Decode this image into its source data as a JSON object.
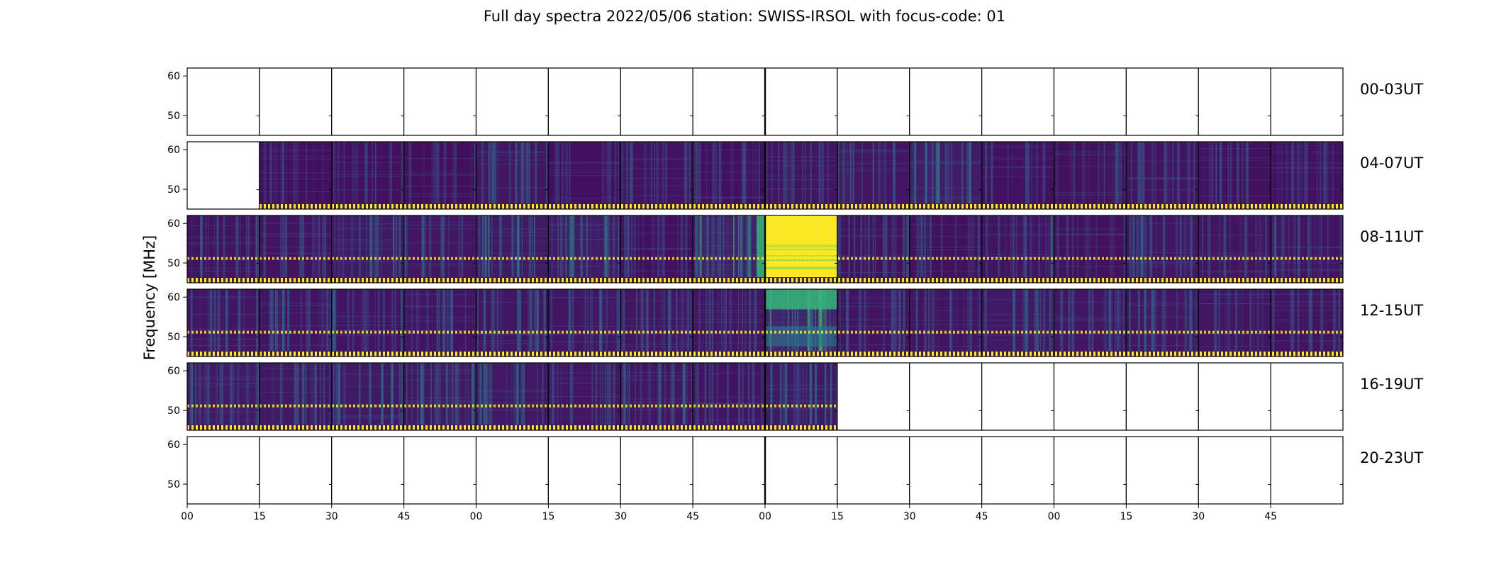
{
  "chart_data": {
    "type": "heatmap",
    "title": "Full day spectra 2022/05/06 station: SWISS-IRSOL with focus-code: 01",
    "ylabel": "Frequency [MHz]",
    "ylim": [
      45,
      62
    ],
    "yticks": [
      "60",
      "50"
    ],
    "ytick_values": [
      60,
      50
    ],
    "xticks": [
      "00",
      "15",
      "30",
      "45",
      "00",
      "15",
      "30",
      "45",
      "00",
      "15",
      "30",
      "45",
      "00",
      "15",
      "30",
      "45"
    ],
    "panels_per_row": 16,
    "minutes_per_panel": 15,
    "colormap": [
      "#440154",
      "#3b528b",
      "#21918c",
      "#5ec962",
      "#fde725"
    ],
    "rows": [
      {
        "label": "00-03UT",
        "panels": [
          {
            "data": false
          },
          {
            "data": false
          },
          {
            "data": false
          },
          {
            "data": false
          },
          {
            "data": false
          },
          {
            "data": false
          },
          {
            "data": false
          },
          {
            "data": false
          },
          {
            "data": false
          },
          {
            "data": false
          },
          {
            "data": false
          },
          {
            "data": false
          },
          {
            "data": false
          },
          {
            "data": false
          },
          {
            "data": false
          },
          {
            "data": false
          }
        ]
      },
      {
        "label": "04-07UT",
        "panels": [
          {
            "data": false
          },
          {
            "data": true,
            "intensity": 0.05
          },
          {
            "data": true,
            "intensity": 0.05
          },
          {
            "data": true,
            "intensity": 0.02
          },
          {
            "data": true,
            "intensity": 0.2
          },
          {
            "data": true,
            "intensity": 0.05
          },
          {
            "data": true,
            "intensity": 0.12
          },
          {
            "data": true,
            "intensity": 0.05
          },
          {
            "data": true,
            "intensity": 0.15
          },
          {
            "data": true,
            "intensity": 0.2
          },
          {
            "data": true,
            "intensity": 0.35
          },
          {
            "data": true,
            "intensity": 0.08
          },
          {
            "data": true,
            "intensity": 0.1
          },
          {
            "data": true,
            "intensity": 0.15
          },
          {
            "data": true,
            "intensity": 0.08
          },
          {
            "data": true,
            "intensity": 0.08
          }
        ]
      },
      {
        "label": "08-11UT",
        "panels": [
          {
            "data": true,
            "intensity": 0.12
          },
          {
            "data": true,
            "intensity": 0.15
          },
          {
            "data": true,
            "intensity": 0.3
          },
          {
            "data": true,
            "intensity": 0.2
          },
          {
            "data": true,
            "intensity": 0.3
          },
          {
            "data": true,
            "intensity": 0.35
          },
          {
            "data": true,
            "intensity": 0.05
          },
          {
            "data": true,
            "intensity": 0.5
          },
          {
            "data": true,
            "intensity": 1.0
          },
          {
            "data": true,
            "intensity": 0.1
          },
          {
            "data": true,
            "intensity": 0.1
          },
          {
            "data": true,
            "intensity": 0.15
          },
          {
            "data": true,
            "intensity": 0.1
          },
          {
            "data": true,
            "intensity": 0.2
          },
          {
            "data": true,
            "intensity": 0.15
          },
          {
            "data": true,
            "intensity": 0.15
          }
        ]
      },
      {
        "label": "12-15UT",
        "panels": [
          {
            "data": true,
            "intensity": 0.2
          },
          {
            "data": true,
            "intensity": 0.15
          },
          {
            "data": true,
            "intensity": 0.15
          },
          {
            "data": true,
            "intensity": 0.15
          },
          {
            "data": true,
            "intensity": 0.2
          },
          {
            "data": true,
            "intensity": 0.2
          },
          {
            "data": true,
            "intensity": 0.2
          },
          {
            "data": true,
            "intensity": 0.2
          },
          {
            "data": true,
            "intensity": 0.6
          },
          {
            "data": true,
            "intensity": 0.15
          },
          {
            "data": true,
            "intensity": 0.15
          },
          {
            "data": true,
            "intensity": 0.25
          },
          {
            "data": true,
            "intensity": 0.2
          },
          {
            "data": true,
            "intensity": 0.2
          },
          {
            "data": true,
            "intensity": 0.2
          },
          {
            "data": true,
            "intensity": 0.15
          }
        ]
      },
      {
        "label": "16-19UT",
        "panels": [
          {
            "data": true,
            "intensity": 0.3
          },
          {
            "data": true,
            "intensity": 0.25
          },
          {
            "data": true,
            "intensity": 0.3
          },
          {
            "data": true,
            "intensity": 0.25
          },
          {
            "data": true,
            "intensity": 0.25
          },
          {
            "data": true,
            "intensity": 0.2
          },
          {
            "data": true,
            "intensity": 0.2
          },
          {
            "data": true,
            "intensity": 0.15
          },
          {
            "data": true,
            "intensity": 0.3
          },
          {
            "data": false
          },
          {
            "data": false
          },
          {
            "data": false
          },
          {
            "data": false
          },
          {
            "data": false
          },
          {
            "data": false
          },
          {
            "data": false
          }
        ]
      },
      {
        "label": "20-23UT",
        "panels": [
          {
            "data": false
          },
          {
            "data": false
          },
          {
            "data": false
          },
          {
            "data": false
          },
          {
            "data": false
          },
          {
            "data": false
          },
          {
            "data": false
          },
          {
            "data": false
          },
          {
            "data": false
          },
          {
            "data": false
          },
          {
            "data": false
          },
          {
            "data": false
          },
          {
            "data": false
          },
          {
            "data": false
          },
          {
            "data": false
          },
          {
            "data": false
          }
        ]
      }
    ]
  }
}
